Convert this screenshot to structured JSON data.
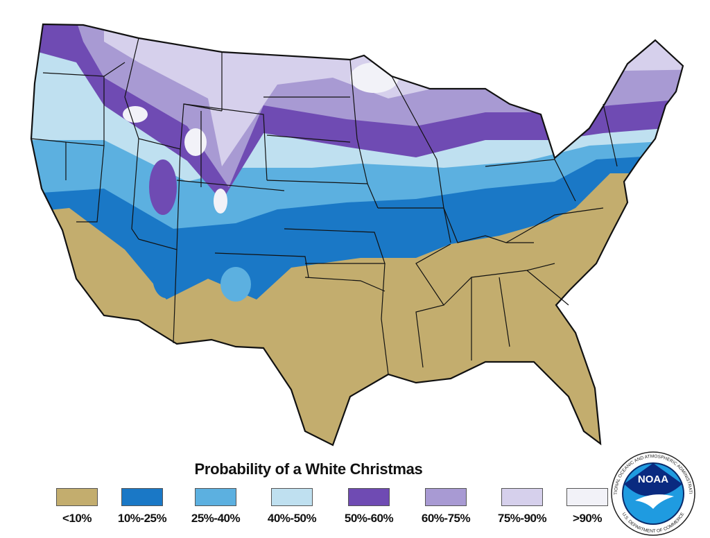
{
  "title": "Probability of a White Christmas",
  "legend": [
    {
      "label": "<10%",
      "color": "#c3ad6e"
    },
    {
      "label": "10%-25%",
      "color": "#1a78c6"
    },
    {
      "label": "25%-40%",
      "color": "#5cb0e0"
    },
    {
      "label": "40%-50%",
      "color": "#bfe0f0"
    },
    {
      "label": "50%-60%",
      "color": "#6f4bb3"
    },
    {
      "label": "60%-75%",
      "color": "#a89ad3"
    },
    {
      "label": "75%-90%",
      "color": "#d6d0ec"
    },
    {
      "label": ">90%",
      "color": "#f2f2f8"
    }
  ],
  "logo": {
    "center": "NOAA",
    "ring_top": "NATIONAL OCEANIC AND ATMOSPHERIC ADMINISTRATION",
    "ring_bottom": "U.S. DEPARTMENT OF COMMERCE"
  }
}
